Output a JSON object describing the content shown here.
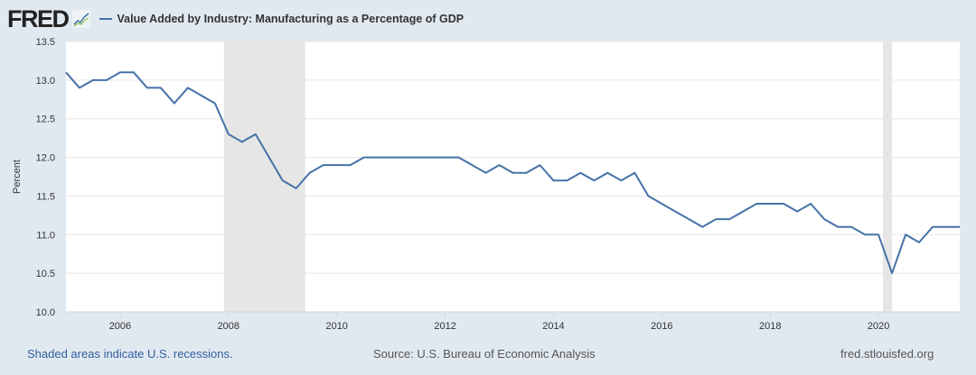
{
  "header": {
    "logo": "FRED",
    "series_title": "Value Added by Industry: Manufacturing as a Percentage of GDP"
  },
  "footer": {
    "recession_note": "Shaded areas indicate U.S. recessions.",
    "source": "Source: U.S. Bureau of Economic Analysis",
    "site": "fred.stlouisfed.org"
  },
  "colors": {
    "line": "#4572a7",
    "recession": "#e6e6e6",
    "background": "#e1e9f0"
  },
  "chart_data": {
    "type": "line",
    "title": "Value Added by Industry: Manufacturing as a Percentage of GDP",
    "ylabel": "Percent",
    "xlabel": "",
    "ylim": [
      10.0,
      13.5
    ],
    "xlim": [
      2005.0,
      2021.5
    ],
    "yticks": [
      "10.0",
      "10.5",
      "11.0",
      "11.5",
      "12.0",
      "12.5",
      "13.0",
      "13.5"
    ],
    "xticks": [
      "2006",
      "2008",
      "2010",
      "2012",
      "2014",
      "2016",
      "2018",
      "2020"
    ],
    "grid": true,
    "frequency": "quarterly",
    "start": 2005.0,
    "recessions": [
      [
        2007.917,
        2009.417
      ],
      [
        2020.083,
        2020.25
      ]
    ],
    "series": [
      {
        "name": "Value Added by Industry: Manufacturing as a Percentage of GDP",
        "values": [
          13.1,
          12.9,
          13.0,
          13.0,
          13.1,
          13.1,
          12.9,
          12.9,
          12.7,
          12.9,
          12.8,
          12.7,
          12.3,
          12.2,
          12.3,
          12.0,
          11.7,
          11.6,
          11.8,
          11.9,
          11.9,
          11.9,
          12.0,
          12.0,
          12.0,
          12.0,
          12.0,
          12.0,
          12.0,
          12.0,
          11.9,
          11.8,
          11.9,
          11.8,
          11.8,
          11.9,
          11.7,
          11.7,
          11.8,
          11.7,
          11.8,
          11.7,
          11.8,
          11.5,
          11.4,
          11.3,
          11.2,
          11.1,
          11.2,
          11.2,
          11.3,
          11.4,
          11.4,
          11.4,
          11.3,
          11.4,
          11.2,
          11.1,
          11.1,
          11.0,
          11.0,
          10.5,
          11.0,
          10.9,
          11.1,
          11.1,
          11.1
        ]
      }
    ]
  }
}
